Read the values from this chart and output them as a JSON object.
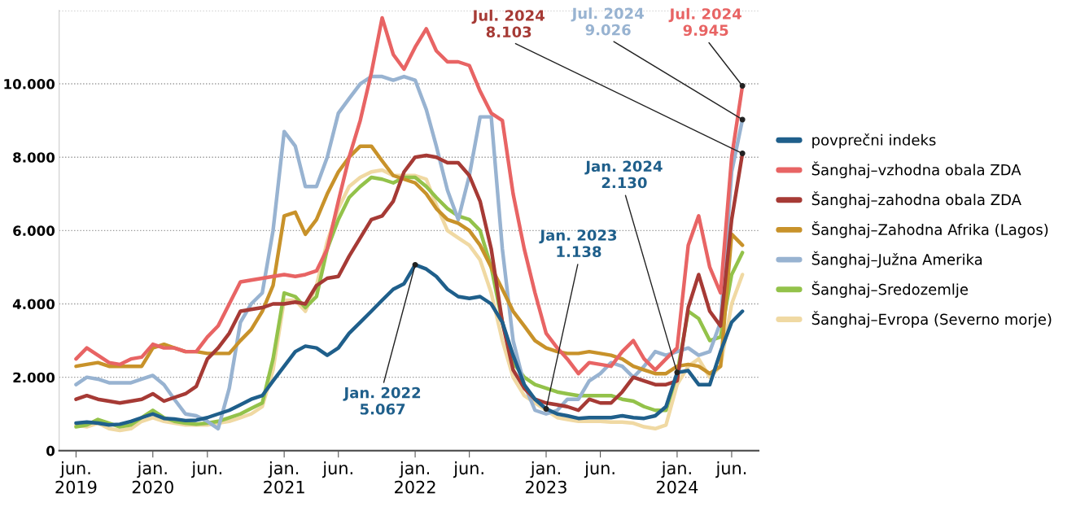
{
  "chart_data": {
    "type": "line",
    "x": [
      "2019-06",
      "2019-07",
      "2019-08",
      "2019-09",
      "2019-10",
      "2019-11",
      "2019-12",
      "2020-01",
      "2020-02",
      "2020-03",
      "2020-04",
      "2020-05",
      "2020-06",
      "2020-07",
      "2020-08",
      "2020-09",
      "2020-10",
      "2020-11",
      "2020-12",
      "2021-01",
      "2021-02",
      "2021-03",
      "2021-04",
      "2021-05",
      "2021-06",
      "2021-07",
      "2021-08",
      "2021-09",
      "2021-10",
      "2021-11",
      "2021-12",
      "2022-01",
      "2022-02",
      "2022-03",
      "2022-04",
      "2022-05",
      "2022-06",
      "2022-07",
      "2022-08",
      "2022-09",
      "2022-10",
      "2022-11",
      "2022-12",
      "2023-01",
      "2023-02",
      "2023-03",
      "2023-04",
      "2023-05",
      "2023-06",
      "2023-07",
      "2023-08",
      "2023-09",
      "2023-10",
      "2023-11",
      "2023-12",
      "2024-01",
      "2024-02",
      "2024-03",
      "2024-04",
      "2024-05",
      "2024-06",
      "2024-07"
    ],
    "series": [
      {
        "name": "Šanghaj–Evropa (Severno morje)",
        "color": "#f0d9a3",
        "values": [
          700,
          650,
          750,
          600,
          550,
          600,
          800,
          900,
          800,
          750,
          700,
          700,
          700,
          750,
          800,
          900,
          1000,
          1200,
          2200,
          4100,
          4100,
          3800,
          4500,
          5700,
          6600,
          7200,
          7450,
          7600,
          7650,
          7500,
          7500,
          7500,
          7400,
          6700,
          6000,
          5800,
          5600,
          5200,
          4300,
          3000,
          2000,
          1500,
          1300,
          1100,
          900,
          850,
          800,
          800,
          800,
          780,
          780,
          750,
          650,
          600,
          700,
          1800,
          2300,
          2500,
          2000,
          2300,
          4000,
          4800
        ]
      },
      {
        "name": "Šanghaj–Sredozemlje",
        "color": "#93c24a",
        "values": [
          650,
          700,
          850,
          750,
          650,
          700,
          900,
          1100,
          900,
          800,
          750,
          720,
          750,
          800,
          900,
          1000,
          1150,
          1300,
          2500,
          4300,
          4200,
          3900,
          4200,
          5500,
          6300,
          6900,
          7200,
          7450,
          7400,
          7300,
          7450,
          7450,
          7200,
          6900,
          6600,
          6400,
          6300,
          6000,
          5000,
          3500,
          2400,
          2000,
          1800,
          1700,
          1600,
          1550,
          1500,
          1500,
          1500,
          1500,
          1400,
          1350,
          1200,
          1100,
          1100,
          2100,
          3800,
          3600,
          3000,
          3100,
          4800,
          5400
        ]
      },
      {
        "name": "Šanghaj–Južna Amerika",
        "color": "#98b3d1",
        "values": [
          1800,
          2000,
          1950,
          1850,
          1850,
          1850,
          1950,
          2050,
          1800,
          1400,
          1000,
          950,
          800,
          600,
          1700,
          3500,
          4000,
          4300,
          6000,
          8700,
          8300,
          7200,
          7200,
          8000,
          9200,
          9600,
          10000,
          10200,
          10200,
          10100,
          10200,
          10100,
          9300,
          8300,
          7100,
          6300,
          7500,
          9100,
          9100,
          5500,
          3000,
          1800,
          1100,
          1000,
          1100,
          1400,
          1400,
          1900,
          2100,
          2400,
          2300,
          2000,
          2300,
          2700,
          2600,
          2700,
          2800,
          2600,
          2700,
          3500,
          7600,
          9026
        ]
      },
      {
        "name": "Šanghaj–Zahodna Afrika (Lagos)",
        "color": "#c8922a",
        "values": [
          2300,
          2350,
          2400,
          2300,
          2300,
          2300,
          2300,
          2800,
          2900,
          2800,
          2700,
          2700,
          2650,
          2650,
          2650,
          3000,
          3300,
          3800,
          4500,
          6400,
          6500,
          5900,
          6300,
          7000,
          7600,
          8000,
          8300,
          8300,
          7900,
          7500,
          7400,
          7300,
          7000,
          6600,
          6300,
          6200,
          6000,
          5600,
          5000,
          4400,
          3800,
          3400,
          3000,
          2800,
          2700,
          2650,
          2650,
          2700,
          2650,
          2600,
          2500,
          2300,
          2200,
          2100,
          2100,
          2300,
          2350,
          2300,
          2100,
          2300,
          5900,
          5600
        ]
      },
      {
        "name": "Šanghaj–zahodna obala ZDA",
        "color": "#a63a35",
        "values": [
          1400,
          1500,
          1400,
          1350,
          1300,
          1350,
          1400,
          1550,
          1350,
          1450,
          1550,
          1750,
          2500,
          2800,
          3200,
          3800,
          3850,
          3900,
          4000,
          4000,
          4050,
          4000,
          4500,
          4700,
          4750,
          5300,
          5800,
          6300,
          6400,
          6800,
          7600,
          8000,
          8050,
          8000,
          7850,
          7850,
          7500,
          6800,
          5500,
          3500,
          2200,
          1700,
          1400,
          1300,
          1250,
          1200,
          1100,
          1400,
          1300,
          1300,
          1600,
          2000,
          1900,
          1800,
          1800,
          1900,
          3900,
          4800,
          3800,
          3400,
          6300,
          8103
        ]
      },
      {
        "name": "Šanghaj–vzhodna obala ZDA",
        "color": "#e86464",
        "values": [
          2500,
          2800,
          2600,
          2400,
          2350,
          2500,
          2550,
          2900,
          2800,
          2800,
          2700,
          2700,
          3100,
          3400,
          4000,
          4600,
          4650,
          4700,
          4750,
          4800,
          4750,
          4800,
          4900,
          5500,
          6800,
          8000,
          9000,
          10300,
          11800,
          10800,
          10400,
          11000,
          11500,
          10900,
          10600,
          10600,
          10500,
          9800,
          9200,
          9000,
          7000,
          5500,
          4300,
          3200,
          2800,
          2500,
          2100,
          2400,
          2350,
          2300,
          2700,
          3000,
          2500,
          2200,
          2500,
          2800,
          5600,
          6400,
          5000,
          4300,
          8000,
          9945
        ]
      },
      {
        "name": "povprečni indeks",
        "color": "#1f5f8b",
        "values": [
          750,
          780,
          750,
          700,
          720,
          800,
          900,
          1000,
          880,
          860,
          820,
          830,
          900,
          1000,
          1100,
          1250,
          1400,
          1500,
          1900,
          2300,
          2700,
          2850,
          2800,
          2600,
          2800,
          3200,
          3500,
          3800,
          4100,
          4400,
          4550,
          5067,
          4950,
          4750,
          4400,
          4200,
          4150,
          4200,
          4000,
          3500,
          2600,
          1800,
          1400,
          1138,
          1000,
          950,
          880,
          900,
          900,
          900,
          950,
          900,
          880,
          950,
          1200,
          2130,
          2180,
          1800,
          1800,
          2700,
          3500,
          3800
        ]
      }
    ],
    "xlim": [
      "2019-04-15",
      "2024-08-15"
    ],
    "xticks": [
      {
        "value": "2019-06",
        "label": "jun.\n2019"
      },
      {
        "value": "2020-01",
        "label": "jan.\n2020"
      },
      {
        "value": "2020-06",
        "label": "jun."
      },
      {
        "value": "2021-01",
        "label": "jan.\n2021"
      },
      {
        "value": "2021-06",
        "label": "jun."
      },
      {
        "value": "2022-01",
        "label": "jan.\n2022"
      },
      {
        "value": "2022-06",
        "label": "jun."
      },
      {
        "value": "2023-01",
        "label": "jan.\n2023"
      },
      {
        "value": "2023-06",
        "label": "jun."
      },
      {
        "value": "2024-01",
        "label": "jan.\n2024"
      },
      {
        "value": "2024-06",
        "label": "jun."
      }
    ],
    "ylim": [
      0,
      12000
    ],
    "yticks": [
      0,
      {
        "value": 2000,
        "label": "2.000"
      },
      {
        "value": 4000,
        "label": "4.000"
      },
      {
        "value": 6000,
        "label": "6.000"
      },
      {
        "value": 8000,
        "label": "8.000"
      },
      {
        "value": 10000,
        "label": "10.000"
      },
      {
        "value": 12000,
        "label": null
      }
    ],
    "grid": "y",
    "legend": "right",
    "marker": "none",
    "line_style": "solid",
    "annotations": [
      {
        "text": "Jan. 2022\n5.067",
        "x": "2022-01",
        "y": 5067
      },
      {
        "text": "Jan. 2023\n1.138",
        "x": "2023-01",
        "y": 1138
      },
      {
        "text": "Jan. 2024\n2.130",
        "x": "2024-01",
        "y": 2130
      },
      {
        "text": "Jul. 2024\n8.103",
        "x": "2024-07",
        "y": 8103
      },
      {
        "text": "Jul. 2024\n9.026",
        "x": "2024-07",
        "y": 9026
      },
      {
        "text": "Jul. 2024\n9.945",
        "x": "2024-07",
        "y": 9945
      }
    ]
  }
}
